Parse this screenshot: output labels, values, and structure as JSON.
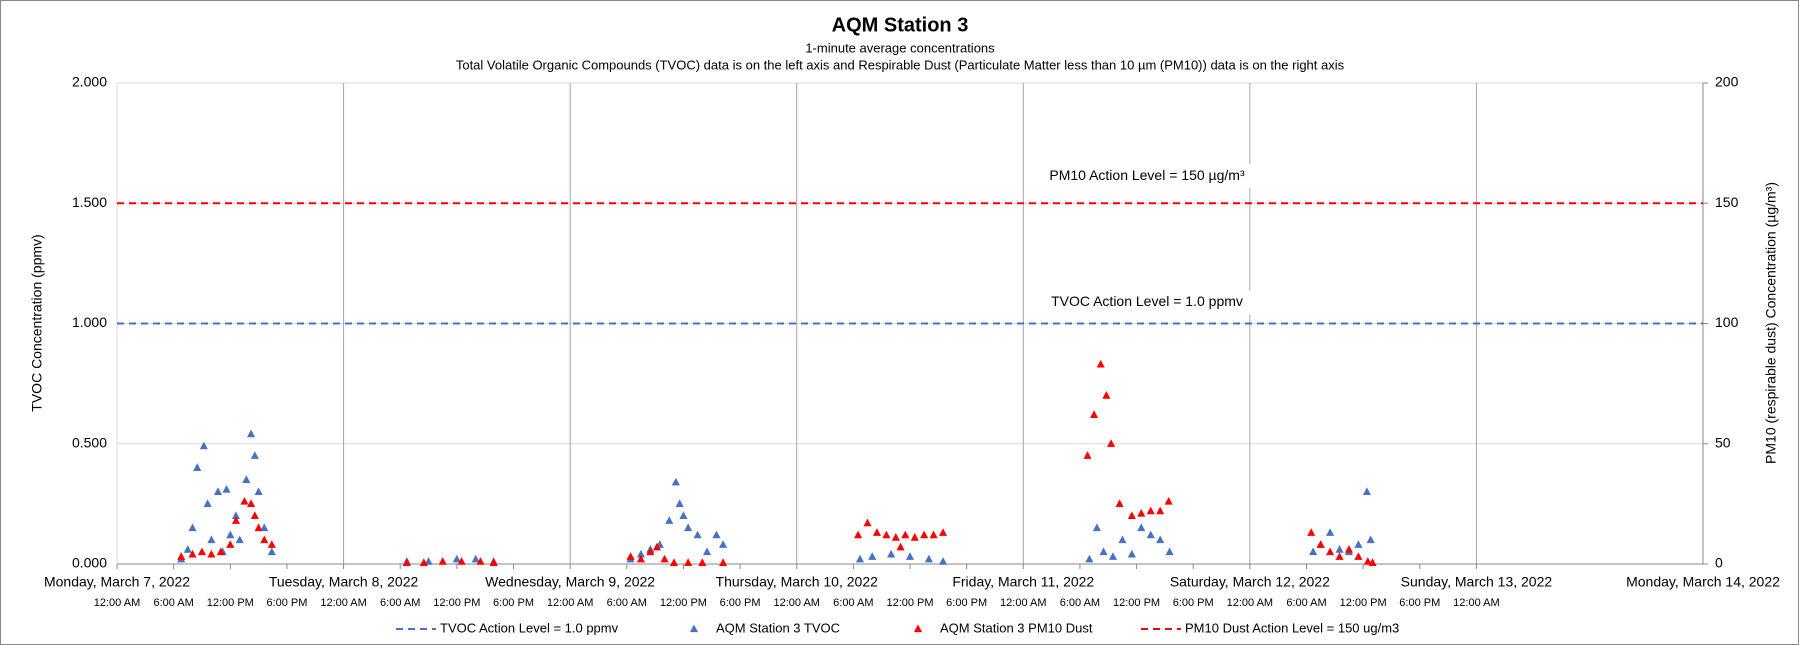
{
  "chart_data": {
    "type": "scatter",
    "title": "AQM Station 3",
    "subtitle": "1-minute average concentrations",
    "subtitle2": "Total Volatile Organic Compounds (TVOC) data is on the left axis and Respirable Dust (Particulate Matter less than 10 µm (PM10)) data is on the right axis",
    "ylabel": "TVOC Concentration (ppmv)",
    "y2label": "PM10 (respirable dust) Concentration (µg/m³)",
    "xlim": [
      "2022-03-07T00:00",
      "2022-03-14T00:00"
    ],
    "xticks": [
      {
        "value": "2022-03-07T00:00",
        "label": "Monday, March 7, 2022"
      },
      {
        "value": "2022-03-08T00:00",
        "label": "Tuesday, March 8, 2022"
      },
      {
        "value": "2022-03-09T00:00",
        "label": "Wednesday, March 9, 2022"
      },
      {
        "value": "2022-03-10T00:00",
        "label": "Thursday, March 10, 2022"
      },
      {
        "value": "2022-03-11T00:00",
        "label": "Friday, March 11, 2022"
      },
      {
        "value": "2022-03-12T00:00",
        "label": "Saturday, March 12, 2022"
      },
      {
        "value": "2022-03-13T00:00",
        "label": "Sunday, March 13, 2022"
      },
      {
        "value": "2022-03-14T00:00",
        "label": "Monday, March 14, 2022"
      }
    ],
    "xminor_ticks": [
      {
        "value": "2022-03-07T00:00",
        "label": "12:00 AM"
      },
      {
        "value": "2022-03-07T06:00",
        "label": "6:00 AM"
      },
      {
        "value": "2022-03-07T12:00",
        "label": "12:00 PM"
      },
      {
        "value": "2022-03-07T18:00",
        "label": "6:00 PM"
      },
      {
        "value": "2022-03-08T00:00",
        "label": "12:00 AM"
      },
      {
        "value": "2022-03-08T06:00",
        "label": "6:00 AM"
      },
      {
        "value": "2022-03-08T12:00",
        "label": "12:00 PM"
      },
      {
        "value": "2022-03-08T18:00",
        "label": "6:00 PM"
      },
      {
        "value": "2022-03-09T00:00",
        "label": "12:00 AM"
      },
      {
        "value": "2022-03-09T06:00",
        "label": "6:00 AM"
      },
      {
        "value": "2022-03-09T12:00",
        "label": "12:00 PM"
      },
      {
        "value": "2022-03-09T18:00",
        "label": "6:00 PM"
      },
      {
        "value": "2022-03-10T00:00",
        "label": "12:00 AM"
      },
      {
        "value": "2022-03-10T06:00",
        "label": "6:00 AM"
      },
      {
        "value": "2022-03-10T12:00",
        "label": "12:00 PM"
      },
      {
        "value": "2022-03-10T18:00",
        "label": "6:00 PM"
      },
      {
        "value": "2022-03-11T00:00",
        "label": "12:00 AM"
      },
      {
        "value": "2022-03-11T06:00",
        "label": "6:00 AM"
      },
      {
        "value": "2022-03-11T12:00",
        "label": "12:00 PM"
      },
      {
        "value": "2022-03-11T18:00",
        "label": "6:00 PM"
      },
      {
        "value": "2022-03-12T00:00",
        "label": "12:00 AM"
      },
      {
        "value": "2022-03-12T06:00",
        "label": "6:00 AM"
      },
      {
        "value": "2022-03-12T12:00",
        "label": "12:00 PM"
      },
      {
        "value": "2022-03-12T18:00",
        "label": "6:00 PM"
      },
      {
        "value": "2022-03-13T00:00",
        "label": "12:00 AM"
      }
    ],
    "ylim": [
      0,
      2
    ],
    "yticks": [
      {
        "value": 0,
        "label": "0.000"
      },
      {
        "value": 0.5,
        "label": "0.500"
      },
      {
        "value": 1,
        "label": "1.000"
      },
      {
        "value": 1.5,
        "label": "1.500"
      },
      {
        "value": 2,
        "label": "2.000"
      }
    ],
    "y2lim": [
      0,
      200
    ],
    "y2ticks": [
      0,
      50,
      100,
      150,
      200
    ],
    "grid": true,
    "legend": "bottom",
    "reference_lines": [
      {
        "name": "TVOC Action Level = 1.0 ppmv",
        "value": 1.0,
        "axis": "y",
        "color": "#4472c4"
      },
      {
        "name": "PM10 Dust Action Level = 150 ug/m3",
        "value": 150,
        "axis": "y2",
        "color": "#ff0000"
      }
    ],
    "annotations": [
      "PM10 Action Level = 150 µg/m³",
      "TVOC Action Level = 1.0 ppmv"
    ],
    "series": [
      {
        "name": "AQM Station 3 TVOC",
        "color": "#4472c4",
        "axis": "y",
        "x": [
          "2022-03-07T06:48",
          "2022-03-07T07:30",
          "2022-03-07T08:00",
          "2022-03-07T08:30",
          "2022-03-07T09:12",
          "2022-03-07T09:36",
          "2022-03-07T10:00",
          "2022-03-07T10:42",
          "2022-03-07T11:12",
          "2022-03-07T11:36",
          "2022-03-07T12:00",
          "2022-03-07T12:36",
          "2022-03-07T13:00",
          "2022-03-07T13:42",
          "2022-03-07T14:12",
          "2022-03-07T14:36",
          "2022-03-07T15:00",
          "2022-03-07T15:36",
          "2022-03-07T16:24",
          "2022-03-08T06:42",
          "2022-03-08T09:00",
          "2022-03-08T12:00",
          "2022-03-08T14:00",
          "2022-03-08T15:54",
          "2022-03-09T06:24",
          "2022-03-09T07:30",
          "2022-03-09T08:30",
          "2022-03-09T09:30",
          "2022-03-09T10:30",
          "2022-03-09T11:12",
          "2022-03-09T11:36",
          "2022-03-09T12:00",
          "2022-03-09T12:30",
          "2022-03-09T13:30",
          "2022-03-09T14:30",
          "2022-03-09T15:30",
          "2022-03-09T16:12",
          "2022-03-10T06:42",
          "2022-03-10T08:00",
          "2022-03-10T10:00",
          "2022-03-10T12:00",
          "2022-03-10T14:00",
          "2022-03-10T15:30",
          "2022-03-11T07:00",
          "2022-03-11T07:48",
          "2022-03-11T08:30",
          "2022-03-11T09:30",
          "2022-03-11T10:30",
          "2022-03-11T11:30",
          "2022-03-11T12:30",
          "2022-03-11T13:30",
          "2022-03-11T14:30",
          "2022-03-11T15:30",
          "2022-03-12T06:42",
          "2022-03-12T07:30",
          "2022-03-12T08:30",
          "2022-03-12T09:30",
          "2022-03-12T10:30",
          "2022-03-12T11:30",
          "2022-03-12T12:24",
          "2022-03-12T12:48"
        ],
        "values": [
          0.02,
          0.06,
          0.15,
          0.4,
          0.49,
          0.25,
          0.1,
          0.3,
          0.05,
          0.31,
          0.12,
          0.2,
          0.1,
          0.35,
          0.54,
          0.45,
          0.3,
          0.15,
          0.05,
          0.01,
          0.01,
          0.02,
          0.02,
          0.01,
          0.02,
          0.04,
          0.06,
          0.08,
          0.18,
          0.34,
          0.25,
          0.2,
          0.15,
          0.12,
          0.05,
          0.12,
          0.08,
          0.02,
          0.03,
          0.04,
          0.03,
          0.02,
          0.01,
          0.02,
          0.15,
          0.05,
          0.03,
          0.1,
          0.04,
          0.15,
          0.12,
          0.1,
          0.05,
          0.05,
          0.08,
          0.13,
          0.06,
          0.05,
          0.08,
          0.3,
          0.1
        ]
      },
      {
        "name": "AQM Station 3 PM10 Dust",
        "color": "#ff0000",
        "axis": "y2",
        "x": [
          "2022-03-07T06:48",
          "2022-03-07T08:00",
          "2022-03-07T09:00",
          "2022-03-07T10:00",
          "2022-03-07T11:00",
          "2022-03-07T12:00",
          "2022-03-07T12:36",
          "2022-03-07T13:30",
          "2022-03-07T14:12",
          "2022-03-07T14:36",
          "2022-03-07T15:00",
          "2022-03-07T15:36",
          "2022-03-07T16:24",
          "2022-03-08T06:42",
          "2022-03-08T08:30",
          "2022-03-08T10:30",
          "2022-03-08T12:30",
          "2022-03-08T14:30",
          "2022-03-08T15:54",
          "2022-03-09T06:24",
          "2022-03-09T07:30",
          "2022-03-09T08:30",
          "2022-03-09T09:12",
          "2022-03-09T10:00",
          "2022-03-09T11:00",
          "2022-03-09T12:30",
          "2022-03-09T14:00",
          "2022-03-09T16:12",
          "2022-03-10T06:30",
          "2022-03-10T07:30",
          "2022-03-10T08:30",
          "2022-03-10T09:30",
          "2022-03-10T10:30",
          "2022-03-10T11:00",
          "2022-03-10T11:30",
          "2022-03-10T12:30",
          "2022-03-10T13:30",
          "2022-03-10T14:30",
          "2022-03-10T15:30",
          "2022-03-11T06:48",
          "2022-03-11T07:30",
          "2022-03-11T08:12",
          "2022-03-11T08:48",
          "2022-03-11T09:18",
          "2022-03-11T10:12",
          "2022-03-11T11:30",
          "2022-03-11T12:30",
          "2022-03-11T13:30",
          "2022-03-11T14:30",
          "2022-03-11T15:24",
          "2022-03-12T06:30",
          "2022-03-12T07:30",
          "2022-03-12T08:30",
          "2022-03-12T09:30",
          "2022-03-12T10:30",
          "2022-03-12T11:30",
          "2022-03-12T12:30",
          "2022-03-12T13:00"
        ],
        "values": [
          3,
          4,
          5,
          4,
          5,
          8,
          18,
          26,
          25,
          20,
          15,
          10,
          8,
          0.5,
          0.5,
          1,
          1,
          1,
          0.5,
          3,
          2,
          5,
          7,
          2,
          0.5,
          0.5,
          0.5,
          0.5,
          12,
          17,
          13,
          12,
          11,
          7,
          12,
          11,
          12,
          12,
          13,
          45,
          62,
          83,
          70,
          50,
          25,
          20,
          21,
          22,
          22,
          26,
          13,
          8,
          5,
          3,
          6,
          3,
          1,
          0.5
        ]
      }
    ]
  }
}
